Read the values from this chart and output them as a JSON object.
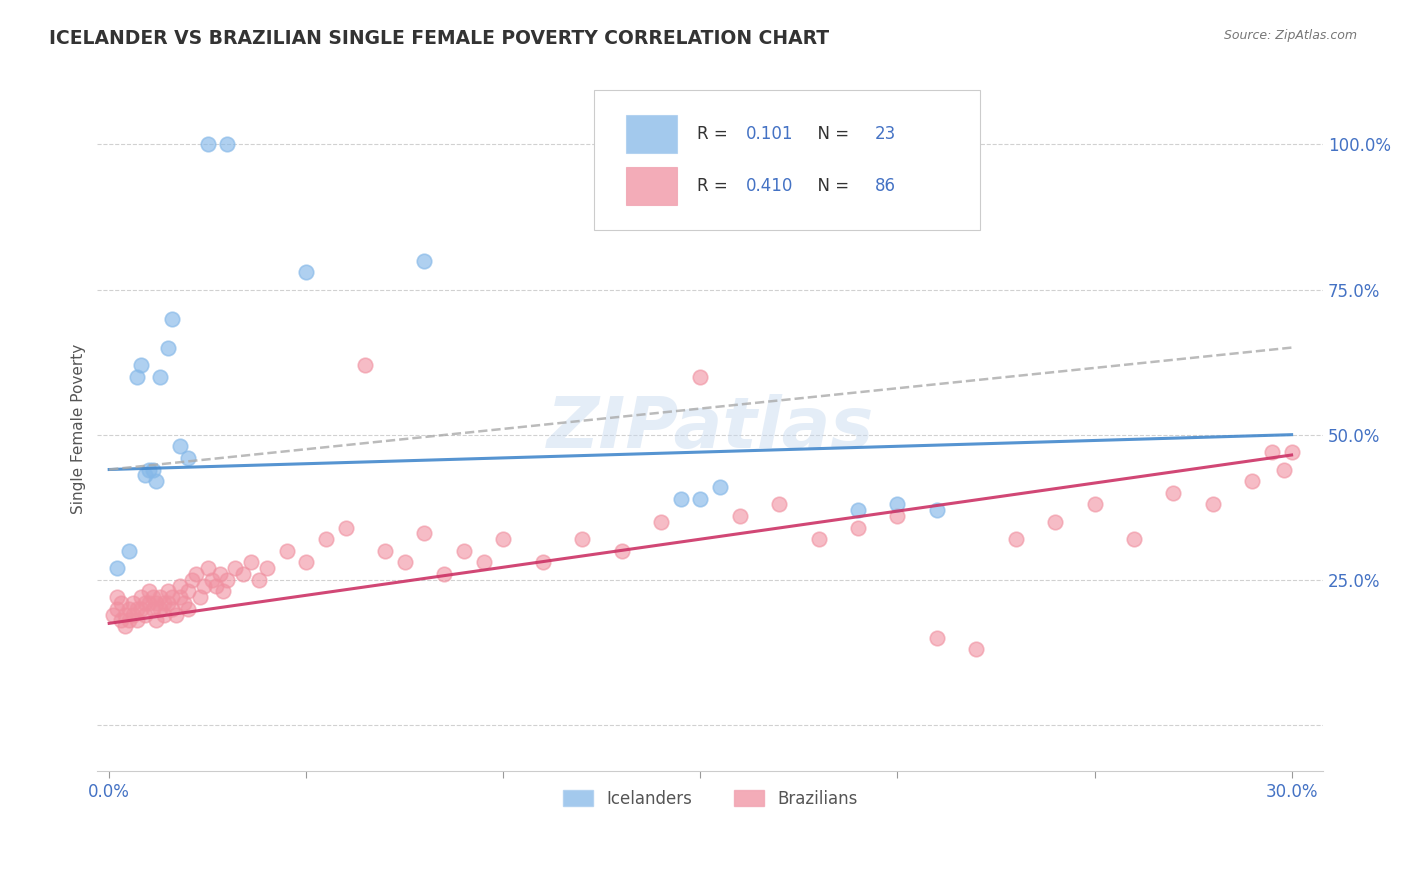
{
  "title": "ICELANDER VS BRAZILIAN SINGLE FEMALE POVERTY CORRELATION CHART",
  "source": "Source: ZipAtlas.com",
  "ylabel": "Single Female Poverty",
  "legend_label1": "Icelanders",
  "legend_label2": "Brazilians",
  "icelander_color": "#85b8e8",
  "brazilian_color": "#f090a0",
  "icelander_line_color": "#4488cc",
  "icelander_line_dash_color": "#999999",
  "brazilian_line_color": "#cc3366",
  "watermark": "ZIPatlas",
  "ice_x": [
    0.002,
    0.005,
    0.007,
    0.008,
    0.009,
    0.01,
    0.011,
    0.012,
    0.013,
    0.015,
    0.016,
    0.018,
    0.02,
    0.025,
    0.03,
    0.05,
    0.08,
    0.145,
    0.15,
    0.155,
    0.19,
    0.2,
    0.21
  ],
  "ice_y": [
    0.27,
    0.3,
    0.6,
    0.62,
    0.43,
    0.44,
    0.44,
    0.42,
    0.6,
    0.65,
    0.7,
    0.48,
    0.46,
    1.0,
    1.0,
    0.78,
    0.8,
    0.39,
    0.39,
    0.41,
    0.37,
    0.38,
    0.37
  ],
  "bra_x": [
    0.001,
    0.002,
    0.002,
    0.003,
    0.003,
    0.004,
    0.004,
    0.005,
    0.005,
    0.006,
    0.006,
    0.007,
    0.007,
    0.008,
    0.008,
    0.009,
    0.009,
    0.01,
    0.01,
    0.011,
    0.011,
    0.012,
    0.012,
    0.013,
    0.013,
    0.014,
    0.014,
    0.015,
    0.015,
    0.016,
    0.016,
    0.017,
    0.018,
    0.018,
    0.019,
    0.02,
    0.02,
    0.021,
    0.022,
    0.023,
    0.024,
    0.025,
    0.026,
    0.027,
    0.028,
    0.029,
    0.03,
    0.032,
    0.034,
    0.036,
    0.038,
    0.04,
    0.045,
    0.05,
    0.055,
    0.06,
    0.065,
    0.07,
    0.075,
    0.08,
    0.085,
    0.09,
    0.095,
    0.1,
    0.11,
    0.12,
    0.13,
    0.14,
    0.15,
    0.16,
    0.17,
    0.18,
    0.19,
    0.2,
    0.21,
    0.22,
    0.23,
    0.24,
    0.25,
    0.26,
    0.27,
    0.28,
    0.29,
    0.295,
    0.298,
    0.3
  ],
  "bra_y": [
    0.19,
    0.2,
    0.22,
    0.18,
    0.21,
    0.19,
    0.17,
    0.2,
    0.18,
    0.21,
    0.19,
    0.18,
    0.2,
    0.22,
    0.2,
    0.19,
    0.21,
    0.23,
    0.21,
    0.2,
    0.22,
    0.18,
    0.21,
    0.22,
    0.2,
    0.21,
    0.19,
    0.23,
    0.21,
    0.22,
    0.2,
    0.19,
    0.24,
    0.22,
    0.21,
    0.23,
    0.2,
    0.25,
    0.26,
    0.22,
    0.24,
    0.27,
    0.25,
    0.24,
    0.26,
    0.23,
    0.25,
    0.27,
    0.26,
    0.28,
    0.25,
    0.27,
    0.3,
    0.28,
    0.32,
    0.34,
    0.62,
    0.3,
    0.28,
    0.33,
    0.26,
    0.3,
    0.28,
    0.32,
    0.28,
    0.32,
    0.3,
    0.35,
    0.6,
    0.36,
    0.38,
    0.32,
    0.34,
    0.36,
    0.15,
    0.13,
    0.32,
    0.35,
    0.38,
    0.32,
    0.4,
    0.38,
    0.42,
    0.47,
    0.44,
    0.47
  ],
  "ice_line_x": [
    0.0,
    0.3
  ],
  "ice_line_y": [
    0.44,
    0.5
  ],
  "ice_dash_line_x": [
    0.0,
    0.3
  ],
  "ice_dash_line_y": [
    0.44,
    0.65
  ],
  "bra_line_x": [
    0.0,
    0.3
  ],
  "bra_line_y": [
    0.175,
    0.465
  ],
  "xlim": [
    -0.003,
    0.308
  ],
  "ylim": [
    -0.08,
    1.1
  ],
  "yticks": [
    0.0,
    0.25,
    0.5,
    0.75,
    1.0
  ],
  "xticks": [
    0.0,
    0.05,
    0.1,
    0.15,
    0.2,
    0.25,
    0.3
  ]
}
